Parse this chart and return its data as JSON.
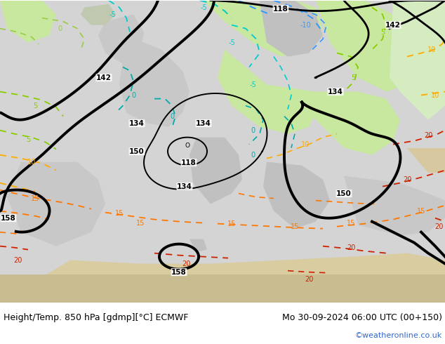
{
  "title_left": "Height/Temp. 850 hPa [gdmp][°C] ECMWF",
  "title_right": "Mo 30-09-2024 06:00 UTC (00+150)",
  "credit": "©weatheronline.co.uk",
  "figsize": [
    6.34,
    4.9
  ],
  "dpi": 100,
  "footer_fontsize": 9,
  "credit_fontsize": 8,
  "credit_color": "#3366cc",
  "map_bg": "#d8d8d8",
  "land_light": "#c8e8a8",
  "land_green": "#a8d878",
  "sea_light": "#e8e8e8",
  "footer_bg": "#ffffff"
}
